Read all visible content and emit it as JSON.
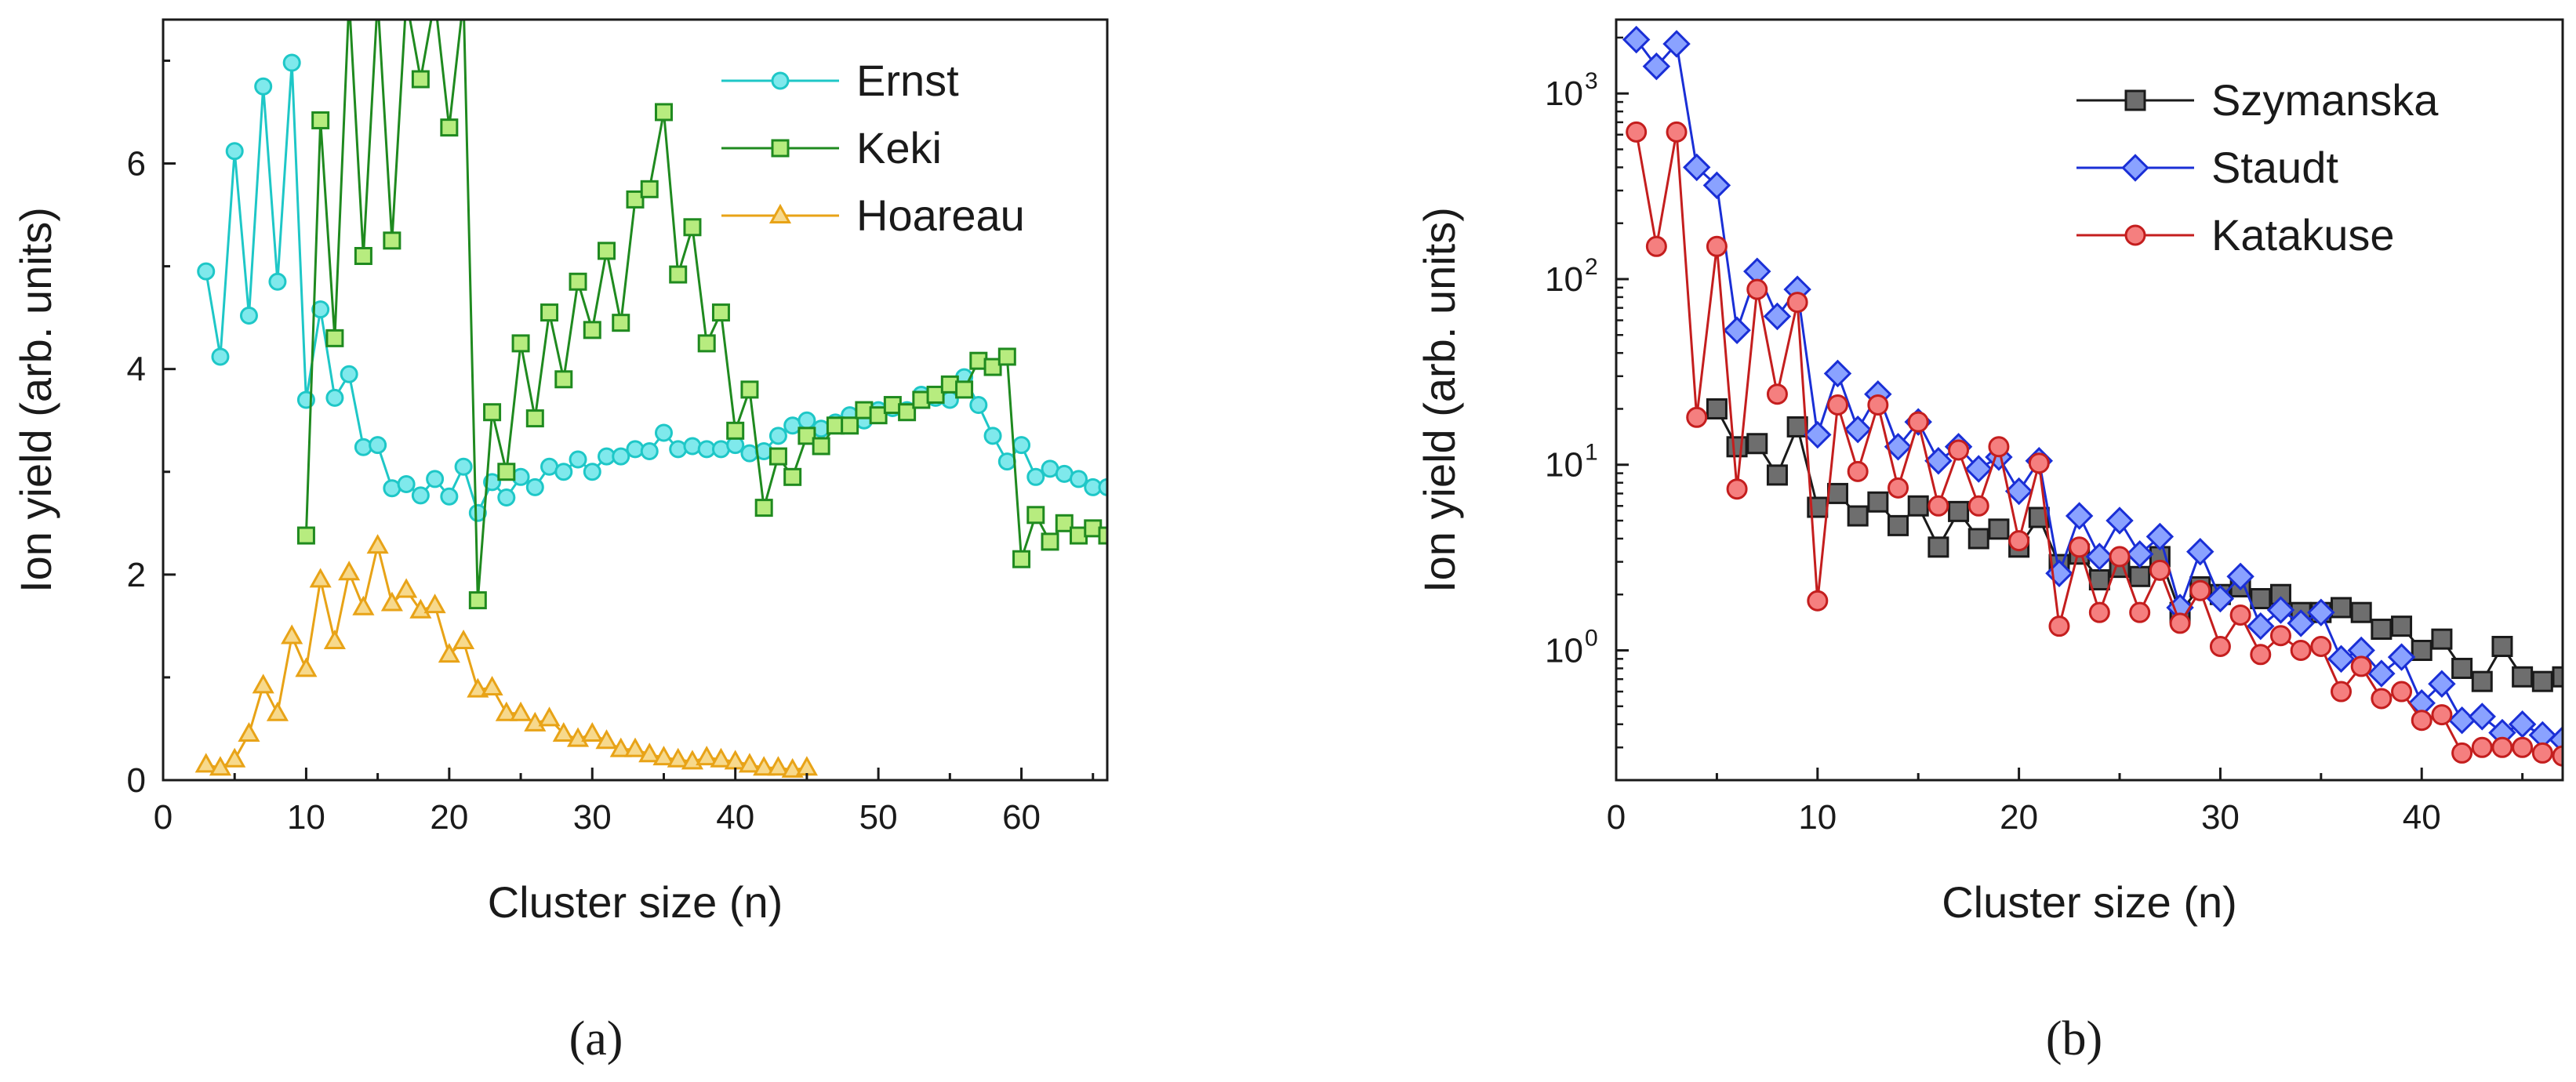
{
  "panel_labels": [
    "(a)",
    "(b)"
  ],
  "chart_data": [
    {
      "type": "line",
      "panel": "(a)",
      "xlabel": "Cluster size (n)",
      "ylabel": "Ion yield (arb. units)",
      "xlim": [
        0,
        66
      ],
      "ylim": [
        0,
        7.4
      ],
      "yscale": "linear",
      "xticks": [
        0,
        10,
        20,
        30,
        40,
        50,
        60
      ],
      "yticks": [
        0,
        2,
        4,
        6
      ],
      "legend_position": "top-right",
      "series": [
        {
          "name": "Ernst",
          "color": "#1ec7c7",
          "fill": "#7fe9ec",
          "marker": "circle",
          "x": [
            3,
            4,
            5,
            6,
            7,
            8,
            9,
            10,
            11,
            12,
            13,
            14,
            15,
            16,
            17,
            18,
            19,
            20,
            21,
            22,
            23,
            24,
            25,
            26,
            27,
            28,
            29,
            30,
            31,
            32,
            33,
            34,
            35,
            36,
            37,
            38,
            39,
            40,
            41,
            42,
            43,
            44,
            45,
            46,
            47,
            48,
            49,
            50,
            51,
            52,
            53,
            54,
            55,
            56,
            57,
            58,
            59,
            60,
            61,
            62,
            63,
            64,
            65,
            66
          ],
          "y": [
            4.95,
            4.12,
            6.12,
            4.52,
            6.75,
            4.85,
            6.98,
            3.7,
            4.58,
            3.72,
            3.95,
            3.24,
            3.26,
            2.84,
            2.88,
            2.77,
            2.93,
            2.76,
            3.05,
            2.6,
            2.9,
            2.75,
            2.95,
            2.85,
            3.05,
            3.0,
            3.12,
            3.0,
            3.15,
            3.15,
            3.22,
            3.2,
            3.38,
            3.22,
            3.25,
            3.22,
            3.22,
            3.26,
            3.18,
            3.2,
            3.35,
            3.45,
            3.5,
            3.42,
            3.48,
            3.55,
            3.5,
            3.6,
            3.62,
            3.6,
            3.75,
            3.72,
            3.7,
            3.92,
            3.65,
            3.35,
            3.1,
            3.26,
            2.95,
            3.03,
            2.98,
            2.93,
            2.85,
            2.85
          ]
        },
        {
          "name": "Keki",
          "color": "#1f8a1f",
          "fill": "#b7ec7f",
          "marker": "square",
          "x": [
            10,
            11,
            12,
            13,
            14,
            15,
            16,
            17,
            18,
            19,
            20,
            21,
            22,
            23,
            24,
            25,
            26,
            27,
            28,
            29,
            30,
            31,
            32,
            33,
            34,
            35,
            36,
            37,
            38,
            39,
            40,
            41,
            42,
            43,
            44,
            45,
            46,
            47,
            48,
            49,
            50,
            51,
            52,
            53,
            54,
            55,
            56,
            57,
            58,
            59,
            60,
            61,
            62,
            63,
            64,
            65,
            66
          ],
          "y": [
            2.38,
            6.42,
            4.3,
            7.6,
            5.1,
            7.6,
            5.25,
            7.6,
            6.82,
            7.6,
            6.35,
            7.6,
            1.75,
            3.58,
            3.0,
            4.25,
            3.52,
            4.55,
            3.9,
            4.85,
            4.38,
            5.15,
            4.45,
            5.65,
            5.75,
            6.5,
            4.92,
            5.38,
            4.25,
            4.55,
            3.4,
            3.8,
            2.65,
            3.15,
            2.95,
            3.35,
            3.25,
            3.45,
            3.45,
            3.6,
            3.55,
            3.65,
            3.58,
            3.7,
            3.75,
            3.85,
            3.8,
            4.08,
            4.02,
            4.12,
            2.15,
            2.58,
            2.32,
            2.5,
            2.38,
            2.45,
            2.38
          ]
        },
        {
          "name": "Hoareau",
          "color": "#e8a317",
          "fill": "#f7d98c",
          "marker": "triangle",
          "x": [
            3,
            4,
            5,
            6,
            7,
            8,
            9,
            10,
            11,
            12,
            13,
            14,
            15,
            16,
            17,
            18,
            19,
            20,
            21,
            22,
            23,
            24,
            25,
            26,
            27,
            28,
            29,
            30,
            31,
            32,
            33,
            34,
            35,
            36,
            37,
            38,
            39,
            40,
            41,
            42,
            43,
            44,
            45
          ],
          "y": [
            0.15,
            0.12,
            0.2,
            0.45,
            0.92,
            0.65,
            1.4,
            1.08,
            1.95,
            1.35,
            2.02,
            1.68,
            2.28,
            1.72,
            1.85,
            1.65,
            1.7,
            1.22,
            1.35,
            0.88,
            0.9,
            0.65,
            0.65,
            0.55,
            0.6,
            0.45,
            0.4,
            0.45,
            0.38,
            0.3,
            0.3,
            0.25,
            0.22,
            0.2,
            0.18,
            0.22,
            0.2,
            0.18,
            0.15,
            0.12,
            0.12,
            0.1,
            0.12
          ]
        }
      ]
    },
    {
      "type": "line",
      "panel": "(b)",
      "xlabel": "Cluster size (n)",
      "ylabel": "Ion yield (arb. units)",
      "xlim": [
        0,
        47
      ],
      "ylim": [
        0.2,
        2500
      ],
      "yscale": "log",
      "xticks": [
        0,
        10,
        20,
        30,
        40
      ],
      "yticks": [
        1,
        10,
        100,
        1000
      ],
      "legend_position": "top-right",
      "series": [
        {
          "name": "Szymanska",
          "color": "#1a1a1a",
          "fill": "#6e6e6e",
          "marker": "square",
          "x": [
            5,
            6,
            7,
            8,
            9,
            10,
            11,
            12,
            13,
            14,
            15,
            16,
            17,
            18,
            19,
            20,
            21,
            22,
            23,
            24,
            25,
            26,
            27,
            28,
            29,
            30,
            31,
            32,
            33,
            34,
            35,
            36,
            37,
            38,
            39,
            40,
            41,
            42,
            43,
            44,
            45,
            46,
            47
          ],
          "y": [
            20,
            12.5,
            13,
            8.8,
            16,
            5.9,
            7.0,
            5.3,
            6.3,
            4.7,
            6.0,
            3.6,
            5.6,
            4.0,
            4.5,
            3.6,
            5.2,
            2.9,
            3.3,
            2.4,
            2.8,
            2.5,
            3.2,
            1.6,
            2.2,
            2.0,
            2.2,
            1.9,
            2.0,
            1.6,
            1.6,
            1.7,
            1.6,
            1.3,
            1.35,
            1.0,
            1.15,
            0.8,
            0.68,
            1.05,
            0.72,
            0.68,
            0.72
          ]
        },
        {
          "name": "Staudt",
          "color": "#1a2fd6",
          "fill": "#8aa2ff",
          "marker": "diamond",
          "x": [
            1,
            2,
            3,
            4,
            5,
            6,
            7,
            8,
            9,
            10,
            11,
            12,
            13,
            14,
            15,
            16,
            17,
            18,
            19,
            20,
            21,
            22,
            23,
            24,
            25,
            26,
            27,
            28,
            29,
            30,
            31,
            32,
            33,
            34,
            35,
            36,
            37,
            38,
            39,
            40,
            41,
            42,
            43,
            44,
            45,
            46,
            47
          ],
          "y": [
            1950,
            1400,
            1850,
            400,
            320,
            53,
            110,
            63,
            88,
            14.5,
            31,
            15.5,
            24,
            12.5,
            17,
            10.5,
            12.5,
            9.5,
            11,
            7.2,
            10.5,
            2.6,
            5.3,
            3.2,
            5.0,
            3.3,
            4.1,
            1.7,
            3.4,
            1.9,
            2.5,
            1.35,
            1.65,
            1.4,
            1.6,
            0.9,
            1.0,
            0.75,
            0.92,
            0.52,
            0.66,
            0.42,
            0.44,
            0.36,
            0.4,
            0.35,
            0.33
          ]
        },
        {
          "name": "Katakuse",
          "color": "#c41e1e",
          "fill": "#f57f7f",
          "marker": "circle",
          "x": [
            1,
            2,
            3,
            4,
            5,
            6,
            7,
            8,
            9,
            10,
            11,
            12,
            13,
            14,
            15,
            16,
            17,
            18,
            19,
            20,
            21,
            22,
            23,
            24,
            25,
            26,
            27,
            28,
            29,
            30,
            31,
            32,
            33,
            34,
            35,
            36,
            37,
            38,
            39,
            40,
            41,
            42,
            43,
            44,
            45,
            46,
            47
          ],
          "y": [
            620,
            150,
            620,
            18,
            150,
            7.4,
            88,
            24,
            75,
            1.85,
            21,
            9.2,
            21,
            7.5,
            17,
            6.0,
            12,
            6.0,
            12.5,
            3.9,
            10.2,
            1.35,
            3.6,
            1.6,
            3.2,
            1.6,
            2.7,
            1.4,
            2.1,
            1.05,
            1.55,
            0.95,
            1.2,
            1.0,
            1.05,
            0.6,
            0.82,
            0.55,
            0.6,
            0.42,
            0.45,
            0.28,
            0.3,
            0.3,
            0.3,
            0.28,
            0.27
          ]
        }
      ]
    }
  ]
}
